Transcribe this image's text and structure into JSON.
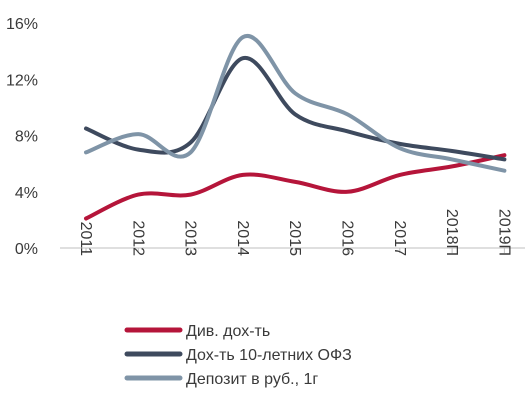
{
  "chart_data": {
    "type": "line",
    "categories": [
      "2011",
      "2012",
      "2013",
      "2014",
      "2015",
      "2016",
      "2017",
      "2018П",
      "2019П"
    ],
    "series": [
      {
        "name": "Див. дох-ть",
        "color": "#b5153a",
        "values": [
          2.1,
          3.8,
          3.8,
          5.2,
          4.7,
          4.0,
          5.2,
          5.8,
          6.6
        ]
      },
      {
        "name": " Дох-ть 10-летних ОФЗ",
        "color": "#3e4a5e",
        "values": [
          8.5,
          7.0,
          7.5,
          13.5,
          9.5,
          8.3,
          7.4,
          6.9,
          6.3
        ]
      },
      {
        "name": "Депозит в руб., 1г",
        "color": "#7f94a7",
        "values": [
          6.8,
          8.1,
          6.8,
          15.0,
          11.0,
          9.5,
          7.1,
          6.3,
          5.5
        ]
      }
    ],
    "y_ticks": [
      "0%",
      "4%",
      "8%",
      "12%",
      "16%"
    ],
    "ylim": [
      0,
      16
    ],
    "xlabel": "",
    "ylabel": "",
    "grid": false,
    "legend": "bottom-center"
  }
}
